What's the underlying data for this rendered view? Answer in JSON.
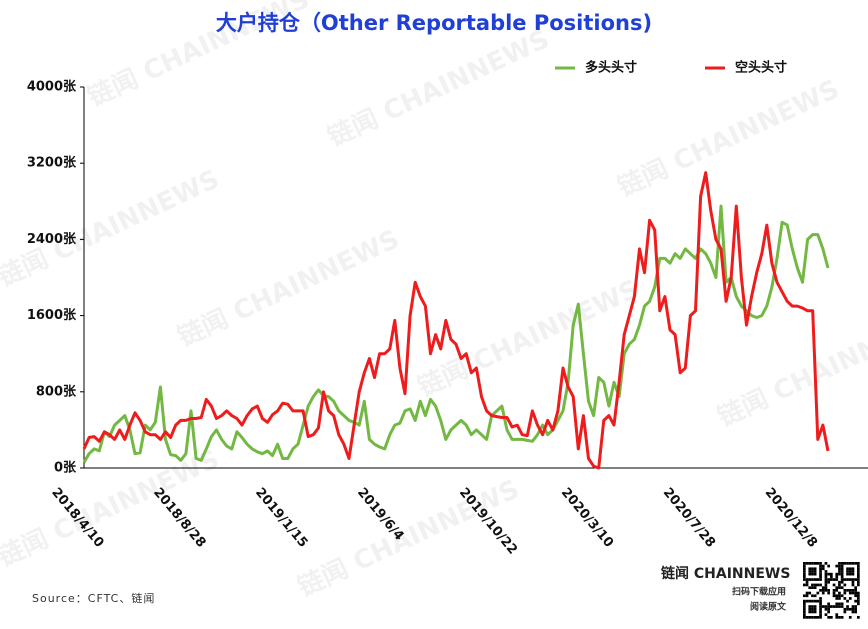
{
  "chart_data": {
    "type": "line",
    "title": "大户持仓（Other Reportable Positions)",
    "source": "Source：CFTC、链闻",
    "legend": "top-right",
    "categories": [
      "2018/4/10",
      null,
      null,
      null,
      null,
      null,
      null,
      null,
      null,
      null,
      null,
      null,
      null,
      null,
      null,
      null,
      null,
      null,
      null,
      null,
      "2018/8/28",
      null,
      null,
      null,
      null,
      null,
      null,
      null,
      null,
      null,
      null,
      null,
      null,
      null,
      null,
      null,
      null,
      null,
      null,
      null,
      "2019/1/15",
      null,
      null,
      null,
      null,
      null,
      null,
      null,
      null,
      null,
      null,
      null,
      null,
      null,
      null,
      null,
      null,
      null,
      null,
      null,
      "2019/6/4",
      null,
      null,
      null,
      null,
      null,
      null,
      null,
      null,
      null,
      null,
      null,
      null,
      null,
      null,
      null,
      null,
      null,
      null,
      null,
      "2019/10/22",
      null,
      null,
      null,
      null,
      null,
      null,
      null,
      null,
      null,
      null,
      null,
      null,
      null,
      null,
      null,
      null,
      null,
      null,
      null,
      "2020/3/10",
      null,
      null,
      null,
      null,
      null,
      null,
      null,
      null,
      null,
      null,
      null,
      null,
      null,
      null,
      null,
      null,
      null,
      null,
      null,
      "2020/7/28",
      null,
      null,
      null,
      null,
      null,
      null,
      null,
      null,
      null,
      null,
      null,
      null,
      null,
      null,
      null,
      null,
      null,
      null,
      null,
      "2020/12/8",
      null,
      null,
      null,
      null,
      null,
      null
    ],
    "series": [
      {
        "name": "多头头寸",
        "color": "#72b843",
        "values": [
          60,
          150,
          200,
          180,
          380,
          330,
          450,
          500,
          550,
          400,
          150,
          160,
          450,
          400,
          480,
          850,
          300,
          140,
          130,
          80,
          150,
          600,
          100,
          80,
          200,
          330,
          400,
          300,
          230,
          200,
          380,
          320,
          250,
          200,
          170,
          150,
          180,
          130,
          250,
          100,
          100,
          200,
          250,
          450,
          650,
          750,
          820,
          760,
          750,
          700,
          600,
          550,
          500,
          480,
          450,
          700,
          300,
          250,
          220,
          200,
          350,
          450,
          470,
          600,
          620,
          500,
          700,
          550,
          720,
          650,
          500,
          300,
          400,
          450,
          500,
          450,
          350,
          400,
          350,
          300,
          550,
          600,
          650,
          400,
          300,
          300,
          300,
          290,
          280,
          350,
          450,
          350,
          400,
          500,
          600,
          900,
          1500,
          1720,
          1200,
          700,
          550,
          950,
          900,
          650,
          900,
          750,
          1200,
          1300,
          1350,
          1500,
          1700,
          1750,
          1900,
          2200,
          2200,
          2150,
          2250,
          2200,
          2300,
          2250,
          2200,
          2300,
          2250,
          2150,
          2000,
          2750,
          1950,
          2000,
          1800,
          1700,
          1650,
          1600,
          1580,
          1600,
          1700,
          1900,
          2200,
          2580,
          2550,
          2300,
          2100,
          1950,
          2400,
          2450,
          2450,
          2300,
          2100
        ]
      },
      {
        "name": "空头头寸",
        "color": "#ee1c1c",
        "values": [
          200,
          320,
          330,
          280,
          380,
          350,
          300,
          400,
          300,
          450,
          580,
          500,
          380,
          350,
          350,
          300,
          380,
          320,
          450,
          500,
          500,
          520,
          520,
          530,
          720,
          650,
          520,
          550,
          600,
          550,
          520,
          450,
          550,
          620,
          650,
          520,
          480,
          560,
          600,
          680,
          670,
          600,
          600,
          600,
          330,
          350,
          420,
          800,
          600,
          550,
          350,
          250,
          100,
          450,
          800,
          1000,
          1150,
          950,
          1200,
          1200,
          1250,
          1550,
          1050,
          780,
          1600,
          1950,
          1800,
          1700,
          1200,
          1400,
          1250,
          1550,
          1350,
          1300,
          1150,
          1200,
          1000,
          1050,
          750,
          600,
          550,
          540,
          530,
          530,
          430,
          450,
          350,
          340,
          600,
          450,
          350,
          500,
          400,
          600,
          1050,
          850,
          750,
          200,
          550,
          100,
          20,
          0,
          500,
          550,
          450,
          900,
          1400,
          1600,
          1800,
          2300,
          2050,
          2600,
          2500,
          1650,
          1800,
          1450,
          1400,
          1000,
          1050,
          1600,
          1650,
          2850,
          3100,
          2700,
          2400,
          2300,
          1750,
          2000,
          2750,
          2000,
          1500,
          1800,
          2050,
          2250,
          2550,
          2150,
          1950,
          1850,
          1750,
          1700,
          1700,
          1680,
          1650,
          1650,
          300,
          450,
          180
        ]
      }
    ],
    "ylim": [
      0,
      4000
    ],
    "yticks": [
      {
        "value": 0,
        "label": "0张"
      },
      {
        "value": 800,
        "label": "800张"
      },
      {
        "value": 1600,
        "label": "1600张"
      },
      {
        "value": 2400,
        "label": "2400张"
      },
      {
        "value": 3200,
        "label": "3200张"
      },
      {
        "value": 4000,
        "label": "4000张"
      }
    ]
  },
  "watermark": "链闻 CHAINNEWS",
  "brand": {
    "name": "链闻 CHAINNEWS",
    "line1": "扫码下载应用",
    "line2": "阅读原文"
  }
}
